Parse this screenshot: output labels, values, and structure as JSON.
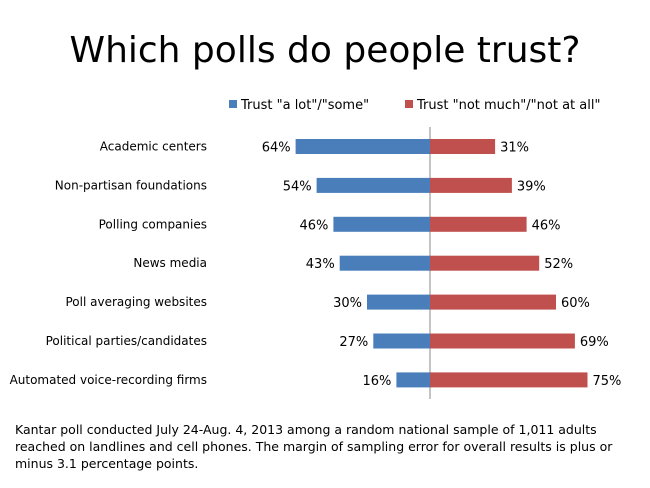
{
  "chart_data": {
    "type": "bar",
    "orientation": "diverging-horizontal",
    "title": "Which polls do people trust?",
    "categories": [
      "Academic centers",
      "Non-partisan foundations",
      "Polling companies",
      "News media",
      "Poll averaging websites",
      "Political parties/candidates",
      "Automated voice-recording firms"
    ],
    "series": [
      {
        "name": "Trust \"a lot\"/\"some\"",
        "color": "#4a7ebb",
        "values": [
          64,
          54,
          46,
          43,
          30,
          27,
          16
        ]
      },
      {
        "name": "Trust \"not much\"/\"not at all\"",
        "color": "#c0504d",
        "values": [
          31,
          39,
          46,
          52,
          60,
          69,
          75
        ]
      }
    ],
    "value_suffix": "%",
    "legend_position": "top",
    "grid": false
  },
  "footnote": "Kantar poll conducted July 24-Aug. 4, 2013 among a random national sample of 1,011 adults reached on landlines and cell phones. The margin of sampling error for overall results is plus or minus 3.1 percentage points."
}
